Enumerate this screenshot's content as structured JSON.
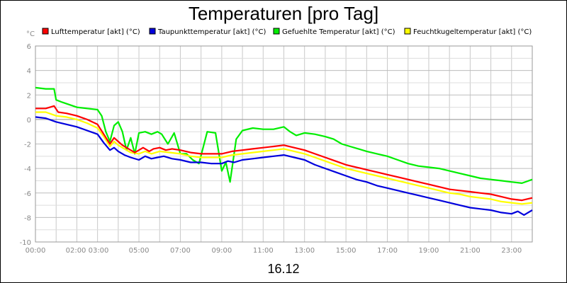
{
  "chart_data": {
    "type": "line",
    "title": "Temperaturen [pro Tag]",
    "xlabel": "16.12",
    "ylabel": "°C",
    "ylim": [
      -10,
      6
    ],
    "xlim_hours": [
      0,
      24
    ],
    "y_ticks": [
      "6",
      "4",
      "2",
      "0",
      "-2",
      "-4",
      "-6",
      "-8",
      "-10"
    ],
    "x_ticks": [
      {
        "h": 0,
        "label": "00:00"
      },
      {
        "h": 2.5,
        "label": "02:00 03:00"
      },
      {
        "h": 5,
        "label": "05:00"
      },
      {
        "h": 7,
        "label": "07:00"
      },
      {
        "h": 9,
        "label": "09:00"
      },
      {
        "h": 11,
        "label": "11:00"
      },
      {
        "h": 13,
        "label": "13:00"
      },
      {
        "h": 15,
        "label": "15:00"
      },
      {
        "h": 17,
        "label": "17:00"
      },
      {
        "h": 19,
        "label": "19:00"
      },
      {
        "h": 21,
        "label": "21:00"
      },
      {
        "h": 23,
        "label": "23:00"
      }
    ],
    "series": [
      {
        "name": "Lufttemperatur [akt] (°C)",
        "color": "#ff0000",
        "x": [
          0,
          0.5,
          0.9,
          1.1,
          1.5,
          2.0,
          2.5,
          3.0,
          3.3,
          3.6,
          3.8,
          4.0,
          4.2,
          4.5,
          4.8,
          5.0,
          5.2,
          5.5,
          5.7,
          6.0,
          6.3,
          6.6,
          7.0,
          7.5,
          8.0,
          8.5,
          9.0,
          9.5,
          10.0,
          10.5,
          11.0,
          11.5,
          12.0,
          12.5,
          13.0,
          13.5,
          14.0,
          14.5,
          15.0,
          15.5,
          16.0,
          16.5,
          17.0,
          17.5,
          18.0,
          18.5,
          19.0,
          19.5,
          20.0,
          20.5,
          21.0,
          21.5,
          22.0,
          22.5,
          23.0,
          23.5,
          24.0
        ],
        "values": [
          0.9,
          0.9,
          1.1,
          0.6,
          0.5,
          0.3,
          0.0,
          -0.4,
          -1.2,
          -2.0,
          -1.5,
          -1.8,
          -2.1,
          -2.4,
          -2.7,
          -2.5,
          -2.3,
          -2.6,
          -2.4,
          -2.3,
          -2.5,
          -2.4,
          -2.5,
          -2.7,
          -2.8,
          -2.8,
          -2.8,
          -2.6,
          -2.5,
          -2.4,
          -2.3,
          -2.2,
          -2.1,
          -2.3,
          -2.5,
          -2.8,
          -3.1,
          -3.4,
          -3.7,
          -3.9,
          -4.1,
          -4.3,
          -4.5,
          -4.7,
          -4.9,
          -5.1,
          -5.3,
          -5.5,
          -5.7,
          -5.8,
          -5.9,
          -6.0,
          -6.1,
          -6.3,
          -6.5,
          -6.6,
          -6.4
        ]
      },
      {
        "name": "Taupunkttemperatur [akt] (°C)",
        "color": "#0000dd",
        "x": [
          0,
          0.5,
          1.0,
          1.5,
          2.0,
          2.5,
          3.0,
          3.3,
          3.6,
          3.8,
          4.0,
          4.3,
          4.6,
          5.0,
          5.3,
          5.6,
          5.9,
          6.2,
          6.6,
          7.0,
          7.5,
          8.0,
          8.5,
          9.0,
          9.3,
          9.6,
          10.0,
          10.5,
          11.0,
          11.5,
          12.0,
          12.5,
          13.0,
          13.5,
          14.0,
          14.5,
          15.0,
          15.5,
          16.0,
          16.5,
          17.0,
          17.5,
          18.0,
          18.5,
          19.0,
          19.5,
          20.0,
          20.5,
          21.0,
          21.5,
          22.0,
          22.5,
          23.0,
          23.3,
          23.6,
          24.0
        ],
        "values": [
          0.2,
          0.1,
          -0.2,
          -0.4,
          -0.6,
          -0.9,
          -1.2,
          -1.9,
          -2.5,
          -2.3,
          -2.6,
          -2.9,
          -3.1,
          -3.3,
          -3.0,
          -3.2,
          -3.1,
          -3.0,
          -3.2,
          -3.3,
          -3.5,
          -3.5,
          -3.6,
          -3.6,
          -3.4,
          -3.5,
          -3.3,
          -3.2,
          -3.1,
          -3.0,
          -2.9,
          -3.1,
          -3.3,
          -3.7,
          -4.0,
          -4.3,
          -4.6,
          -4.9,
          -5.1,
          -5.4,
          -5.6,
          -5.8,
          -6.0,
          -6.2,
          -6.4,
          -6.6,
          -6.8,
          -7.0,
          -7.2,
          -7.3,
          -7.4,
          -7.6,
          -7.7,
          -7.5,
          -7.8,
          -7.4
        ]
      },
      {
        "name": "Gefuehlte Temperatur [akt] (°C)",
        "color": "#00ee00",
        "x": [
          0,
          0.5,
          0.9,
          1.0,
          1.3,
          2.0,
          2.5,
          3.0,
          3.2,
          3.4,
          3.6,
          3.8,
          4.0,
          4.2,
          4.4,
          4.6,
          4.8,
          5.0,
          5.3,
          5.6,
          5.9,
          6.1,
          6.4,
          6.7,
          7.0,
          7.3,
          7.6,
          7.9,
          8.3,
          8.7,
          9.0,
          9.2,
          9.4,
          9.7,
          10.0,
          10.5,
          11.0,
          11.5,
          12.0,
          12.3,
          12.6,
          13.0,
          13.5,
          14.0,
          14.4,
          14.8,
          15.2,
          15.6,
          16.0,
          16.5,
          17.0,
          17.5,
          18.0,
          18.5,
          19.0,
          19.5,
          20.0,
          20.5,
          21.0,
          21.5,
          22.0,
          22.5,
          23.0,
          23.5,
          24.0
        ],
        "values": [
          2.6,
          2.5,
          2.5,
          1.6,
          1.4,
          1.0,
          0.9,
          0.8,
          0.3,
          -1.0,
          -1.8,
          -0.5,
          -0.2,
          -1.0,
          -2.5,
          -1.5,
          -2.8,
          -1.1,
          -1.0,
          -1.2,
          -1.0,
          -1.2,
          -2.0,
          -1.1,
          -2.8,
          -2.8,
          -3.3,
          -3.6,
          -1.0,
          -1.1,
          -4.2,
          -3.5,
          -5.1,
          -1.6,
          -0.9,
          -0.7,
          -0.8,
          -0.8,
          -0.6,
          -1.0,
          -1.3,
          -1.1,
          -1.2,
          -1.4,
          -1.6,
          -2.0,
          -2.2,
          -2.4,
          -2.6,
          -2.8,
          -3.0,
          -3.3,
          -3.6,
          -3.8,
          -3.9,
          -4.0,
          -4.2,
          -4.4,
          -4.6,
          -4.8,
          -4.9,
          -5.0,
          -5.1,
          -5.2,
          -4.9
        ]
      },
      {
        "name": "Feuchtkugeltemperatur [akt] (°C)",
        "color": "#ffff00",
        "x": [
          0,
          0.5,
          1.0,
          1.5,
          2.0,
          2.5,
          3.0,
          3.3,
          3.6,
          3.8,
          4.0,
          4.3,
          4.6,
          5.0,
          5.3,
          5.6,
          6.0,
          6.5,
          7.0,
          7.5,
          8.0,
          8.5,
          9.0,
          9.5,
          10.0,
          10.5,
          11.0,
          11.5,
          12.0,
          12.5,
          13.0,
          13.5,
          14.0,
          14.5,
          15.0,
          15.5,
          16.0,
          16.5,
          17.0,
          17.5,
          18.0,
          18.5,
          19.0,
          19.5,
          20.0,
          20.5,
          21.0,
          21.5,
          22.0,
          22.5,
          23.0,
          23.5,
          24.0
        ],
        "values": [
          0.6,
          0.6,
          0.3,
          0.2,
          0.0,
          -0.3,
          -0.7,
          -1.4,
          -2.2,
          -1.8,
          -2.1,
          -2.4,
          -2.7,
          -2.8,
          -2.6,
          -2.8,
          -2.6,
          -2.7,
          -2.8,
          -3.0,
          -3.1,
          -3.1,
          -3.1,
          -2.9,
          -2.8,
          -2.7,
          -2.6,
          -2.5,
          -2.4,
          -2.6,
          -2.8,
          -3.1,
          -3.4,
          -3.7,
          -4.0,
          -4.2,
          -4.4,
          -4.6,
          -4.8,
          -5.0,
          -5.2,
          -5.4,
          -5.6,
          -5.8,
          -6.0,
          -6.1,
          -6.3,
          -6.4,
          -6.5,
          -6.7,
          -6.8,
          -6.9,
          -6.8
        ]
      }
    ]
  }
}
